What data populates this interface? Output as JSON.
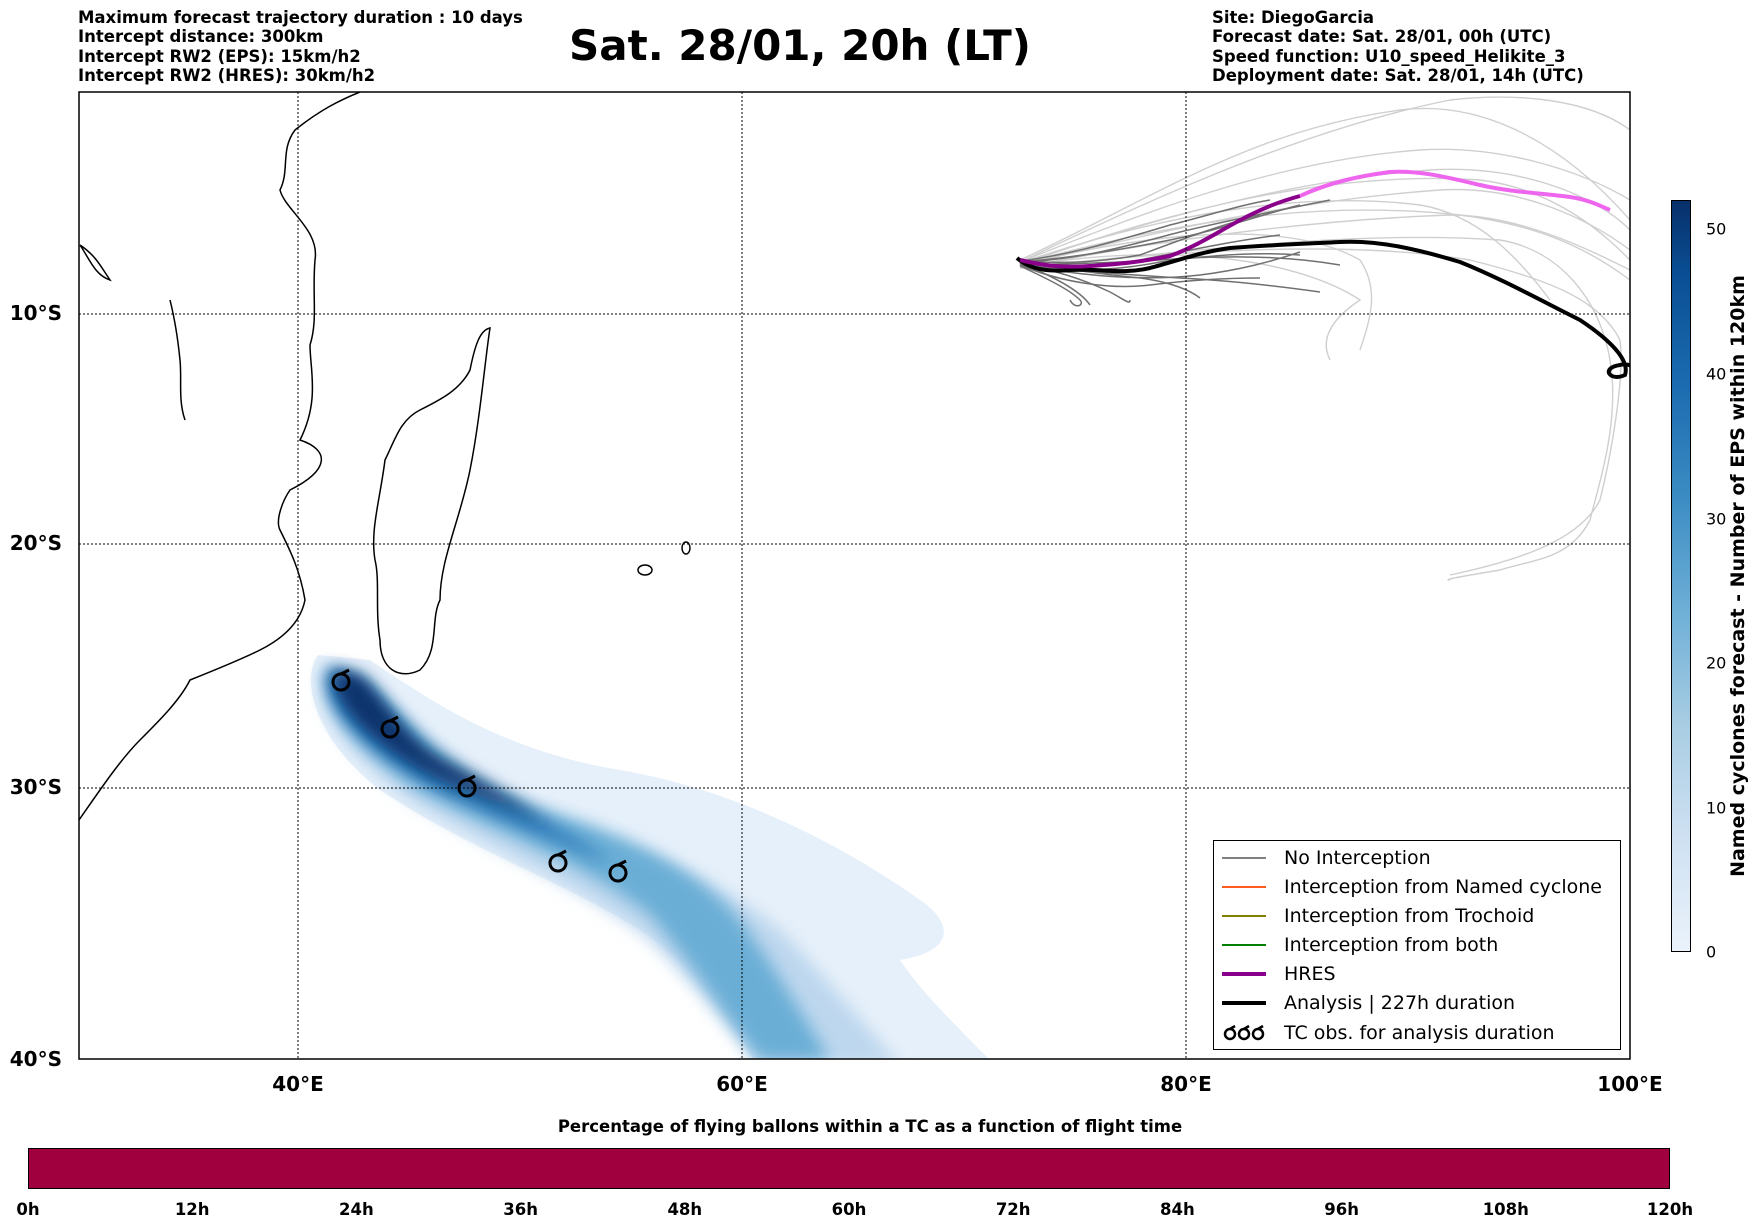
{
  "header": {
    "left_lines": [
      "Maximum forecast trajectory duration : 10 days",
      "Intercept distance: 300km",
      "Intercept RW2 (EPS):  15km/h2",
      "Intercept RW2 (HRES): 30km/h2"
    ],
    "title": "Sat. 28/01, 20h (LT)",
    "right_lines": [
      "Site: DiegoGarcia",
      "Forecast date: Sat. 28/01, 00h (UTC)",
      "Speed function: U10_speed_Helikite_3",
      "Deployment date: Sat. 28/01, 14h (UTC)"
    ]
  },
  "map": {
    "lat_labels": [
      "10°S",
      "20°S",
      "30°S",
      "40°S"
    ],
    "lon_labels": [
      "40°E",
      "60°E",
      "80°E",
      "100°E"
    ],
    "colors": {
      "no_interception": "#808080",
      "interception_named_cyclone": "#ff5a1f",
      "interception_trochoid": "#808000",
      "interception_both": "#008000",
      "hres": "#8b008b",
      "hres_extension": "#ee66ee",
      "analysis": "#000000",
      "eps_density_dark": "#08306b",
      "eps_density_light": "#e8f1fa"
    }
  },
  "legend": {
    "items": [
      {
        "label": "No Interception",
        "color": "#808080",
        "style": "thin"
      },
      {
        "label": "Interception from Named cyclone",
        "color": "#ff5a1f",
        "style": "thin"
      },
      {
        "label": "Interception from Trochoid",
        "color": "#808000",
        "style": "thin"
      },
      {
        "label": "Interception from both",
        "color": "#008000",
        "style": "thin"
      },
      {
        "label": "HRES",
        "color": "#8b008b",
        "style": "thick"
      },
      {
        "label": "Analysis | 227h duration",
        "color": "#000000",
        "style": "thick"
      },
      {
        "label": "TC obs. for analysis duration",
        "color": "#000000",
        "style": "tc-symbols"
      }
    ]
  },
  "colorbar_vertical": {
    "label": "Named cyclones forecast - Number of EPS within 120km",
    "ticks": [
      "0",
      "10",
      "20",
      "30",
      "40",
      "50"
    ],
    "max_value": 52
  },
  "colorbar_horizontal": {
    "title": "Percentage of flying ballons within a TC as a function of flight time",
    "ticks": [
      "0h",
      "12h",
      "24h",
      "36h",
      "48h",
      "60h",
      "72h",
      "84h",
      "96h",
      "108h",
      "120h"
    ],
    "fill_color": "#a0003e"
  }
}
